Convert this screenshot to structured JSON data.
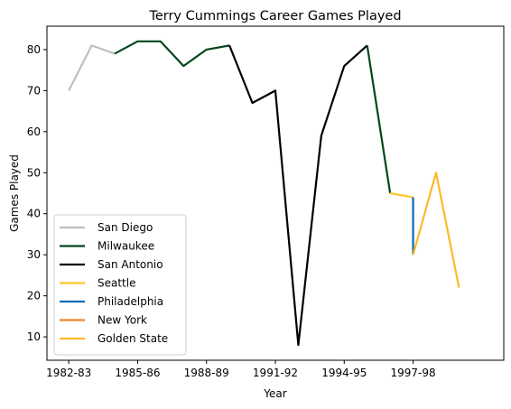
{
  "chart_data": {
    "type": "line",
    "title": "Terry Cummings Career Games Played",
    "xlabel": "Year",
    "ylabel": "Games Played",
    "x": [
      "1982-83",
      "1983-84",
      "1984-85",
      "1985-86",
      "1986-87",
      "1987-88",
      "1988-89",
      "1989-90",
      "1990-91",
      "1991-92",
      "1992-93",
      "1993-94",
      "1994-95",
      "1995-96",
      "1996-97",
      "1997-98",
      "1997-98b",
      "1998-99",
      "1999-00"
    ],
    "x_ticks": [
      {
        "index": 0,
        "label": "1982-83"
      },
      {
        "index": 3,
        "label": "1985-86"
      },
      {
        "index": 6,
        "label": "1988-89"
      },
      {
        "index": 9,
        "label": "1991-92"
      },
      {
        "index": 12,
        "label": "1994-95"
      },
      {
        "index": 15,
        "label": "1997-98"
      }
    ],
    "xlim": [
      -0.95,
      18.95
    ],
    "ylim": [
      4.3,
      85.7
    ],
    "y_ticks": [
      10,
      20,
      30,
      40,
      50,
      60,
      70,
      80
    ],
    "grid": false,
    "legend_position": "lower-left",
    "series": [
      {
        "name": "San Diego",
        "color": "#BFBFBF",
        "points": [
          [
            0,
            70
          ],
          [
            1,
            81
          ],
          [
            2,
            79
          ]
        ]
      },
      {
        "name": "Milwaukee",
        "color": "#00471B",
        "points": [
          [
            2,
            79
          ],
          [
            3,
            82
          ],
          [
            4,
            82
          ],
          [
            5,
            76
          ],
          [
            6,
            80
          ],
          [
            7,
            81
          ]
        ]
      },
      {
        "name": "San Antonio",
        "color": "#000000",
        "points": [
          [
            7,
            81
          ],
          [
            8,
            67
          ],
          [
            9,
            70
          ],
          [
            10,
            8
          ],
          [
            11,
            59
          ],
          [
            12,
            76
          ],
          [
            13,
            81
          ]
        ]
      },
      {
        "name": "Milwaukee",
        "color": "#00471B",
        "points": [
          [
            13,
            81
          ],
          [
            14,
            45
          ]
        ]
      },
      {
        "name": "Seattle",
        "color": "#FFC72C",
        "points": [
          [
            14,
            45
          ],
          [
            15,
            44
          ]
        ]
      },
      {
        "name": "Philadelphia",
        "color": "#006BB6",
        "points": [
          [
            15,
            44
          ],
          [
            15,
            30
          ]
        ]
      },
      {
        "name": "New York",
        "color": "#F58426",
        "points": [
          [
            15,
            30
          ],
          [
            15,
            30
          ]
        ]
      },
      {
        "name": "Golden State",
        "color": "#FDB927",
        "points": [
          [
            15,
            30
          ],
          [
            16,
            50
          ],
          [
            17,
            22
          ]
        ]
      }
    ],
    "legend": [
      {
        "name": "San Diego",
        "color": "#BFBFBF"
      },
      {
        "name": "Milwaukee",
        "color": "#00471B"
      },
      {
        "name": "San Antonio",
        "color": "#000000"
      },
      {
        "name": "Seattle",
        "color": "#FFC72C"
      },
      {
        "name": "Philadelphia",
        "color": "#006BB6"
      },
      {
        "name": "New York",
        "color": "#F58426"
      },
      {
        "name": "Golden State",
        "color": "#FDB927"
      }
    ]
  }
}
